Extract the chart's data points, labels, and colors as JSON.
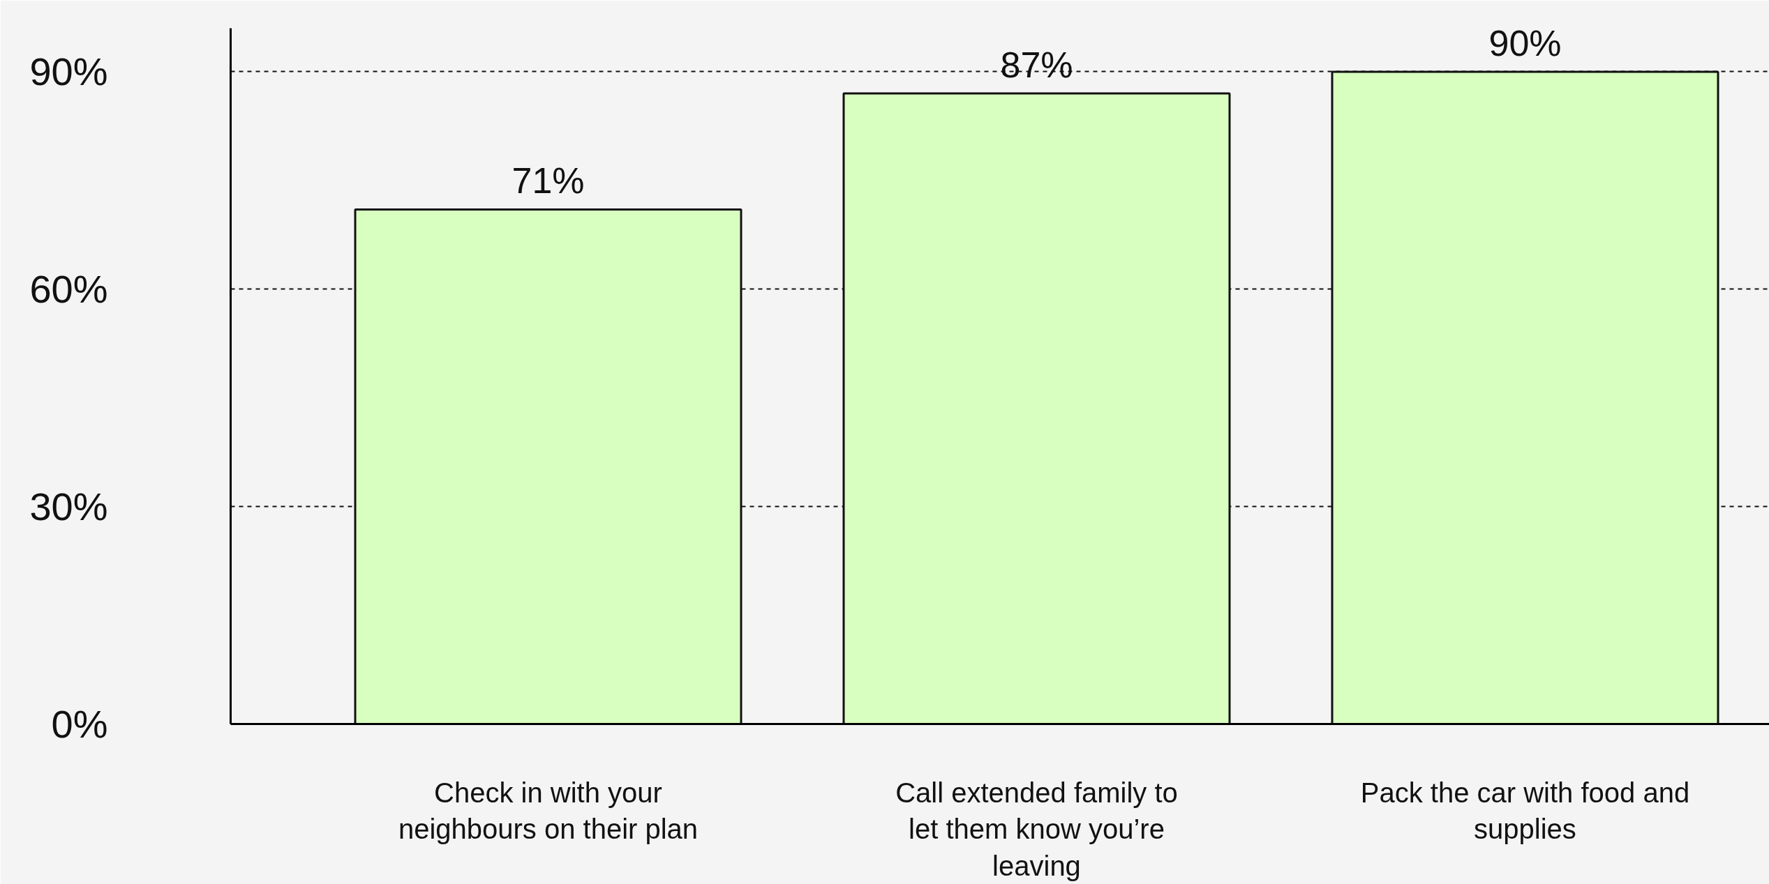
{
  "chart_data": {
    "type": "bar",
    "categories": [
      "Check in with your neighbours on their plan",
      "Call extended family to let them know you’re leaving",
      "Pack the car with food and supplies"
    ],
    "values": [
      71,
      87,
      90
    ],
    "color": "#d9ffc0",
    "value_labels": [
      "71%",
      "87%",
      "90%"
    ],
    "ylim": [
      0,
      96
    ],
    "yticks": [
      {
        "value": 0,
        "label": "0%"
      },
      {
        "value": 30,
        "label": "30%"
      },
      {
        "value": 60,
        "label": "60%"
      },
      {
        "value": 90,
        "label": "90%"
      }
    ],
    "grid": "y"
  }
}
